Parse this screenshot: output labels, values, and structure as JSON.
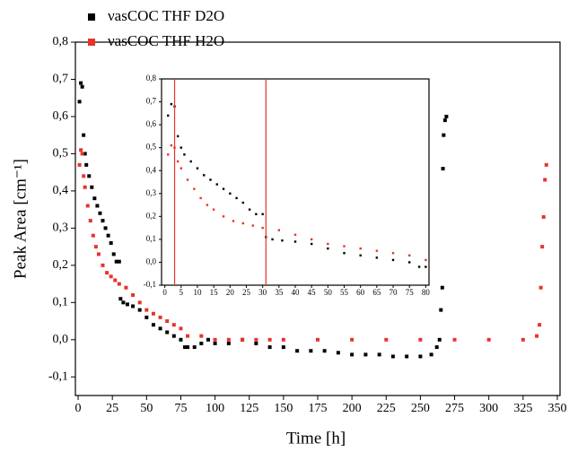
{
  "chart_data": {
    "type": "scatter",
    "xlabel": "Time [h]",
    "ylabel": "Peak Area [cm⁻¹]",
    "xlim": [
      -2,
      352
    ],
    "ylim": [
      -0.15,
      0.8
    ],
    "xticks": [
      0,
      25,
      50,
      75,
      100,
      125,
      150,
      175,
      200,
      225,
      250,
      275,
      300,
      325,
      350
    ],
    "yticks": [
      {
        "value": -0.1,
        "label": "-0,1"
      },
      {
        "value": 0,
        "label": "0,0"
      },
      {
        "value": 0.1,
        "label": "0,1"
      },
      {
        "value": 0.2,
        "label": "0,2"
      },
      {
        "value": 0.3,
        "label": "0,3"
      },
      {
        "value": 0.4,
        "label": "0,4"
      },
      {
        "value": 0.5,
        "label": "0,5"
      },
      {
        "value": 0.6,
        "label": "0,6"
      },
      {
        "value": 0.7,
        "label": "0,7"
      },
      {
        "value": 0.8,
        "label": "0,8"
      }
    ],
    "legend": "top-left",
    "series": [
      {
        "name": "νasCOC THF D2O",
        "color": "#000000",
        "x": [
          1,
          2,
          3,
          4,
          5,
          6,
          8,
          10,
          12,
          14,
          16,
          18,
          20,
          22,
          24,
          26,
          28,
          30,
          31,
          33,
          36,
          40,
          45,
          50,
          55,
          60,
          65,
          70,
          75,
          78,
          80,
          85,
          90,
          95,
          100,
          110,
          120,
          130,
          140,
          150,
          160,
          170,
          180,
          190,
          200,
          210,
          220,
          230,
          240,
          250,
          258,
          262,
          264,
          265,
          266,
          266.5,
          267,
          268,
          269
        ],
        "values": [
          0.64,
          0.69,
          0.68,
          0.55,
          0.5,
          0.47,
          0.44,
          0.41,
          0.38,
          0.36,
          0.34,
          0.32,
          0.3,
          0.28,
          0.26,
          0.23,
          0.21,
          0.21,
          0.11,
          0.1,
          0.095,
          0.09,
          0.08,
          0.06,
          0.04,
          0.03,
          0.02,
          0.01,
          0,
          -0.02,
          -0.02,
          -0.02,
          -0.01,
          0,
          -0.01,
          -0.01,
          0,
          -0.01,
          -0.02,
          -0.02,
          -0.03,
          -0.03,
          -0.03,
          -0.035,
          -0.04,
          -0.04,
          -0.04,
          -0.045,
          -0.045,
          -0.045,
          -0.04,
          -0.02,
          0,
          0.08,
          0.14,
          0.46,
          0.55,
          0.59,
          0.6
        ]
      },
      {
        "name": "νasCOC THF H2O",
        "color": "#e8332a",
        "x": [
          1,
          2,
          3,
          4,
          5,
          7,
          9,
          11,
          13,
          15,
          18,
          21,
          24,
          27,
          30,
          35,
          40,
          45,
          50,
          55,
          60,
          65,
          70,
          75,
          80,
          90,
          100,
          110,
          120,
          130,
          140,
          150,
          175,
          200,
          225,
          250,
          275,
          300,
          325,
          335,
          337,
          338,
          339,
          340,
          341,
          342
        ],
        "values": [
          0.47,
          0.51,
          0.5,
          0.44,
          0.41,
          0.36,
          0.32,
          0.28,
          0.25,
          0.23,
          0.2,
          0.18,
          0.17,
          0.16,
          0.15,
          0.14,
          0.12,
          0.1,
          0.08,
          0.07,
          0.06,
          0.05,
          0.04,
          0.03,
          0.01,
          0.01,
          0,
          0,
          0,
          0,
          0,
          0,
          0,
          0,
          0,
          0,
          0,
          0,
          0,
          0.01,
          0.04,
          0.14,
          0.25,
          0.33,
          0.43,
          0.47
        ]
      }
    ],
    "inset": {
      "xlim": [
        -1,
        81
      ],
      "ylim": [
        -0.1,
        0.8
      ],
      "xticks": [
        0,
        5,
        10,
        15,
        20,
        25,
        30,
        35,
        40,
        45,
        50,
        55,
        60,
        65,
        70,
        75,
        80
      ],
      "yticks": [
        {
          "value": -0.1,
          "label": "-0,1"
        },
        {
          "value": 0,
          "label": "0,0"
        },
        {
          "value": 0.1,
          "label": "0,1"
        },
        {
          "value": 0.2,
          "label": "0,2"
        },
        {
          "value": 0.3,
          "label": "0,3"
        },
        {
          "value": 0.4,
          "label": "0,4"
        },
        {
          "value": 0.5,
          "label": "0,5"
        },
        {
          "value": 0.6,
          "label": "0,6"
        },
        {
          "value": 0.7,
          "label": "0,7"
        },
        {
          "value": 0.8,
          "label": "0,8"
        }
      ],
      "vlines": [
        3,
        31
      ],
      "vline_color": "#e8332a"
    }
  }
}
